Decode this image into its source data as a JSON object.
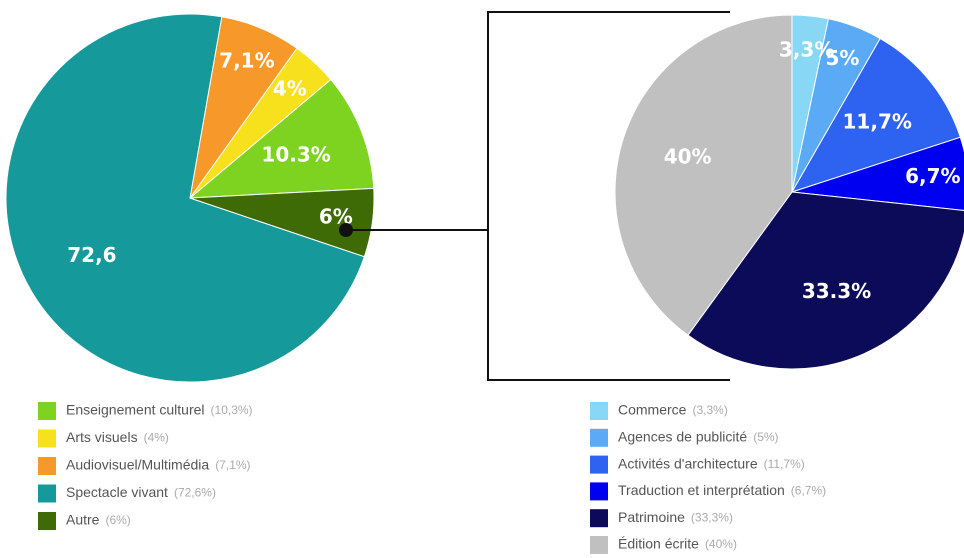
{
  "chart_data": [
    {
      "type": "pie",
      "categories": [
        "Enseignement culturel",
        "Arts visuels",
        "Audiovisuel/Multimédia",
        "Spectacle vivant",
        "Autre"
      ],
      "values": [
        10.3,
        4,
        7.1,
        72.6,
        6
      ],
      "value_labels": [
        "10.3%",
        "4%",
        "7,1%",
        "72,6",
        "6%"
      ],
      "legend_labels": [
        "(10,3%)",
        "(4%)",
        "(7,1%)",
        "(72,6%)",
        "(6%)"
      ],
      "colors": [
        "#7ed321",
        "#f7e11c",
        "#f7982a",
        "#16999b",
        "#3f6b06"
      ]
    },
    {
      "type": "pie",
      "categories": [
        "Commerce",
        "Agences de publicité",
        "Activités d'architecture",
        "Traduction et interprétation",
        "Patrimoine",
        "Édition écrite"
      ],
      "values": [
        3.3,
        5,
        11.7,
        6.7,
        33.3,
        40
      ],
      "value_labels": [
        "3,3%",
        "5%",
        "11,7%",
        "6,7%",
        "33.3%",
        "40%"
      ],
      "legend_labels": [
        "(3,3%)",
        "(5%)",
        "(11,7%)",
        "(6,7%)",
        "(33,3%)",
        "(40%)"
      ],
      "colors": [
        "#87d7f5",
        "#5aaaf5",
        "#2d63f0",
        "#0000f0",
        "#0b0b5a",
        "#c0c0c0"
      ]
    }
  ]
}
